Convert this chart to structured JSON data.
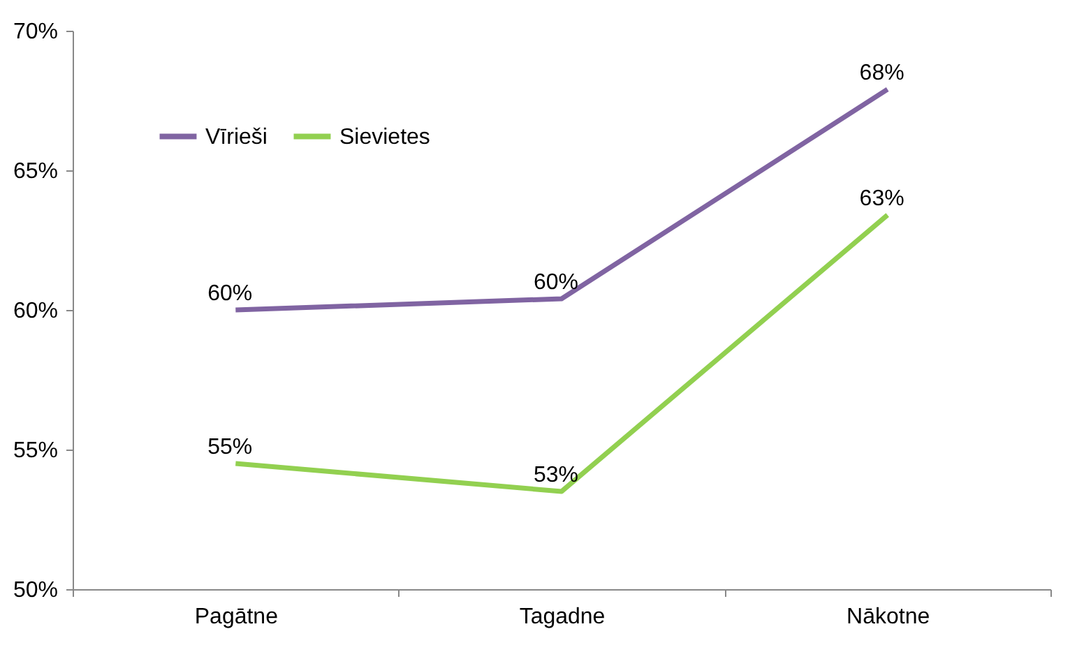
{
  "chart_data": {
    "type": "line",
    "categories": [
      "Pagātne",
      "Tagadne",
      "Nākotne"
    ],
    "series": [
      {
        "name": "Vīrieši",
        "color": "#8064a2",
        "values": [
          60,
          60.4,
          67.9
        ],
        "value_labels": [
          "60%",
          "60%",
          "68%"
        ]
      },
      {
        "name": "Sievietes",
        "color": "#92d050",
        "values": [
          54.5,
          53.5,
          63.4
        ],
        "value_labels": [
          "55%",
          "53%",
          "63%"
        ]
      }
    ],
    "ylim": [
      50,
      70
    ],
    "yticks": [
      {
        "value": 50,
        "label": "50%"
      },
      {
        "value": 55,
        "label": "55%"
      },
      {
        "value": 60,
        "label": "60%"
      },
      {
        "value": 65,
        "label": "65%"
      },
      {
        "value": 70,
        "label": "70%"
      }
    ],
    "legend": "top left",
    "marker": "none",
    "line_style": "solid"
  }
}
